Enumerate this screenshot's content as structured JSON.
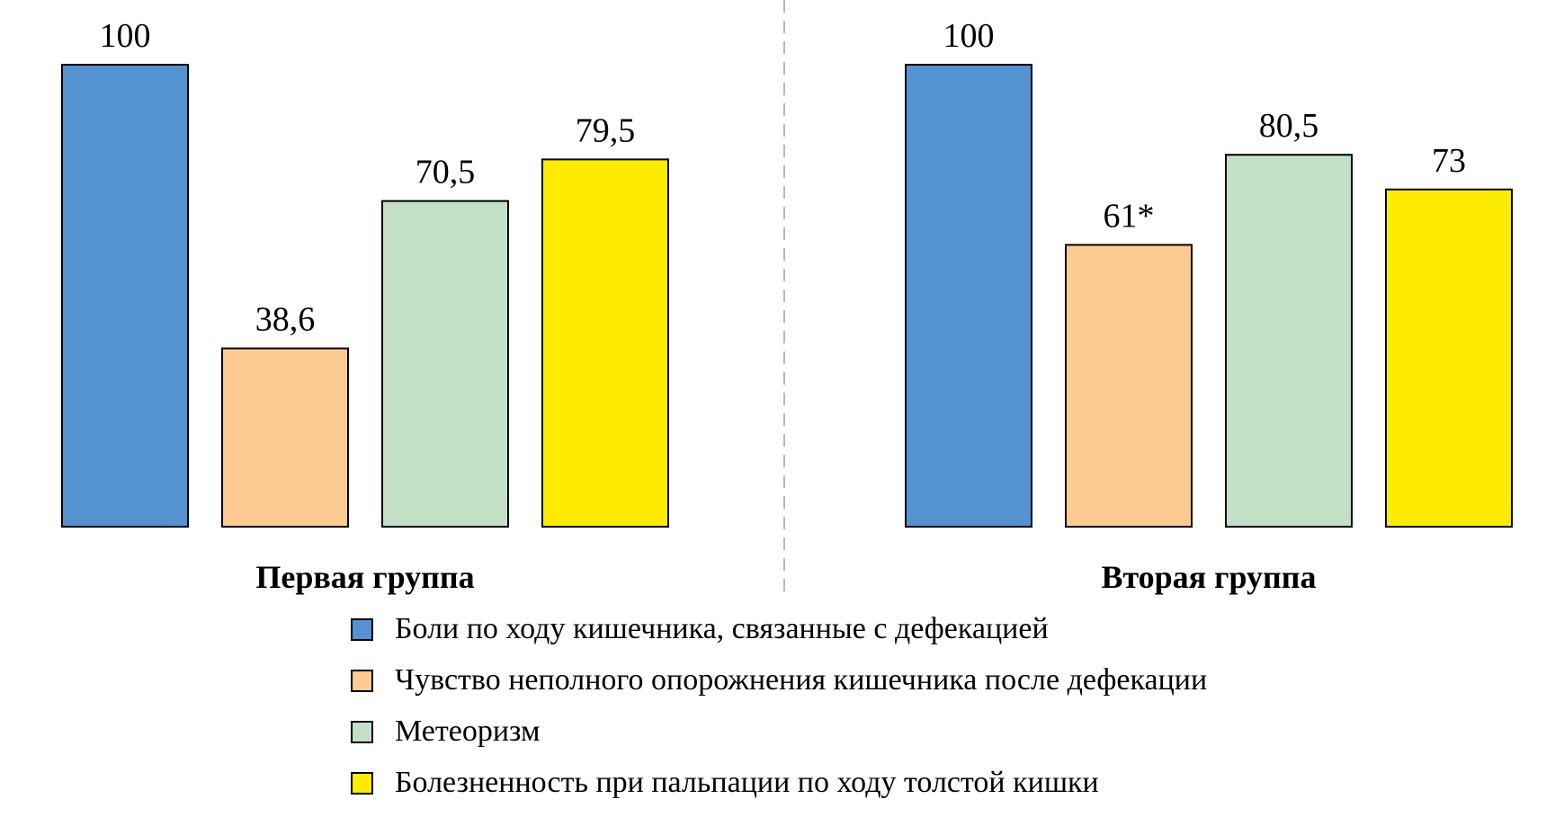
{
  "chart_data": {
    "type": "bar",
    "ylim": [
      0,
      100
    ],
    "groups": [
      {
        "label": "Первая группа",
        "values": [
          100,
          38.6,
          70.5,
          79.5
        ],
        "value_labels": [
          "100",
          "38,6",
          "70,5",
          "79,5"
        ]
      },
      {
        "label": "Вторая группа",
        "values": [
          100,
          61,
          80.5,
          73
        ],
        "value_labels": [
          "100",
          "61*",
          "80,5",
          "73"
        ]
      }
    ],
    "series": [
      {
        "name": "Боли по ходу кишечника, связанные с дефекацией",
        "color": "#5592d0"
      },
      {
        "name": "Чувство неполного опорожнения кишечника после дефекации",
        "color": "#fccb91"
      },
      {
        "name": "Метеоризм",
        "color": "#c3e0c6"
      },
      {
        "name": "Болезненность при пальпации по ходу толстой кишки",
        "color": "#fdec00"
      }
    ],
    "legend_position": "bottom",
    "grid": false
  }
}
